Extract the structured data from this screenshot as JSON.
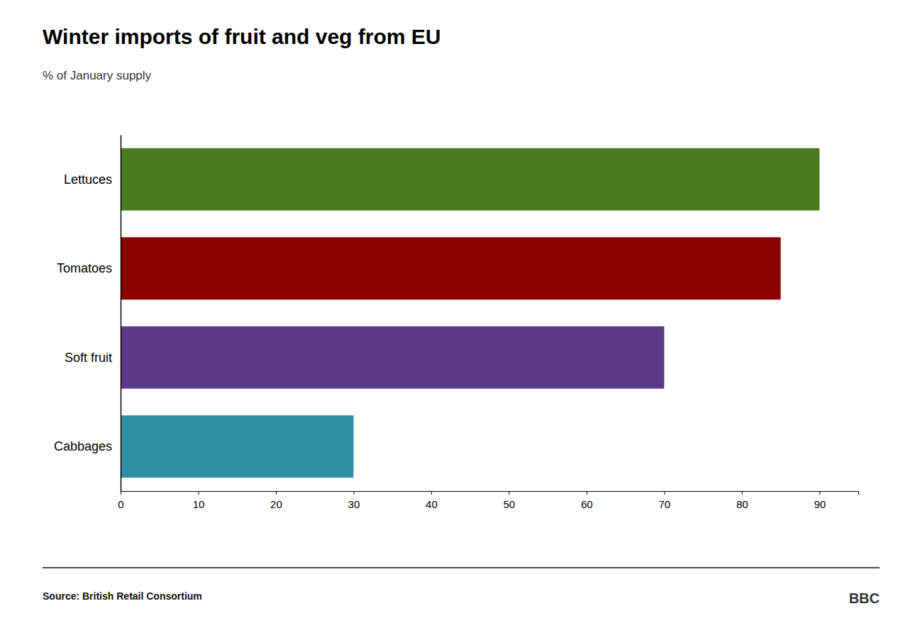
{
  "chart_data": {
    "type": "bar",
    "orientation": "horizontal",
    "title": "Winter imports of fruit and veg from EU",
    "subtitle": "% of January supply",
    "categories": [
      "Cabbages",
      "Soft fruit",
      "Tomatoes",
      "Lettuces"
    ],
    "values": [
      30,
      70,
      85,
      90
    ],
    "colors": [
      "#2e8fa3",
      "#5b3a8c",
      "#8b0000",
      "#4d7a1e"
    ],
    "xlim": [
      0,
      95
    ],
    "xticks": [
      0,
      10,
      20,
      30,
      40,
      50,
      60,
      70,
      80,
      90
    ],
    "grid": false,
    "annotations": [
      "Source: British Retail Consortium",
      "BBC"
    ]
  }
}
